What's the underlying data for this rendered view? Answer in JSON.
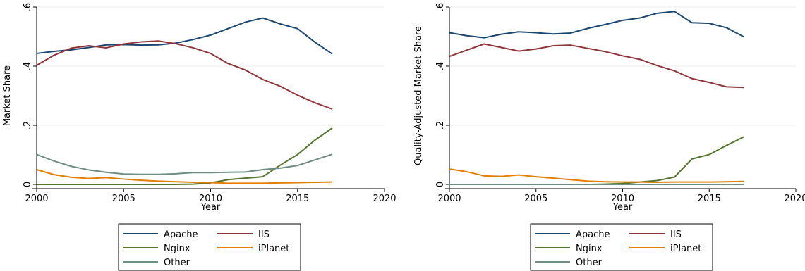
{
  "chart_data": [
    {
      "type": "line",
      "xlabel": "Year",
      "ylabel": "Market Share",
      "xlim": [
        2000,
        2020
      ],
      "ylim": [
        0,
        0.6
      ],
      "xticks": [
        2000,
        2005,
        2010,
        2015,
        2020
      ],
      "xtick_labels": [
        "2000",
        "2005",
        "2010",
        "2015",
        "2020"
      ],
      "yticks": [
        0,
        0.2,
        0.4,
        0.6
      ],
      "ytick_labels": [
        "0",
        ".2",
        ".4",
        ".6"
      ],
      "grid": true,
      "legend": "bottom",
      "x": [
        2000,
        2001,
        2002,
        2003,
        2004,
        2005,
        2006,
        2007,
        2008,
        2009,
        2010,
        2011,
        2012,
        2013,
        2014,
        2015,
        2016,
        2017
      ],
      "series": [
        {
          "name": "Apache",
          "color": "#1a476f",
          "values": [
            0.443,
            0.45,
            0.455,
            0.463,
            0.472,
            0.473,
            0.471,
            0.472,
            0.478,
            0.49,
            0.505,
            0.527,
            0.549,
            0.563,
            0.543,
            0.527,
            0.481,
            0.441
          ]
        },
        {
          "name": "IIS",
          "color": "#90353b",
          "values": [
            0.403,
            0.437,
            0.461,
            0.469,
            0.462,
            0.475,
            0.482,
            0.485,
            0.476,
            0.462,
            0.443,
            0.409,
            0.387,
            0.355,
            0.332,
            0.302,
            0.276,
            0.255
          ]
        },
        {
          "name": "Nginx",
          "color": "#55752f",
          "values": [
            0.0,
            0.0,
            0.0,
            0.0,
            0.0,
            0.0,
            0.0,
            0.0,
            0.0,
            0.001,
            0.005,
            0.016,
            0.021,
            0.026,
            0.065,
            0.101,
            0.15,
            0.191
          ]
        },
        {
          "name": "iPlanet",
          "color": "#e37e00",
          "values": [
            0.05,
            0.033,
            0.024,
            0.02,
            0.023,
            0.018,
            0.014,
            0.011,
            0.009,
            0.007,
            0.006,
            0.004,
            0.004,
            0.004,
            0.005,
            0.006,
            0.007,
            0.008
          ]
        },
        {
          "name": "Other",
          "color": "#6e8e84",
          "values": [
            0.101,
            0.079,
            0.061,
            0.049,
            0.041,
            0.035,
            0.034,
            0.034,
            0.036,
            0.04,
            0.04,
            0.041,
            0.042,
            0.05,
            0.055,
            0.064,
            0.083,
            0.102
          ]
        }
      ]
    },
    {
      "type": "line",
      "xlabel": "Year",
      "ylabel": "Quality-Adjusted Market Share",
      "xlim": [
        2000,
        2020
      ],
      "ylim": [
        0,
        0.6
      ],
      "xticks": [
        2000,
        2005,
        2010,
        2015,
        2020
      ],
      "xtick_labels": [
        "2000",
        "2005",
        "2010",
        "2015",
        "2020"
      ],
      "yticks": [
        0,
        0.2,
        0.4,
        0.6
      ],
      "ytick_labels": [
        "0",
        ".2",
        ".4",
        ".6"
      ],
      "grid": true,
      "legend": "bottom",
      "x": [
        2000,
        2001,
        2002,
        2003,
        2004,
        2005,
        2006,
        2007,
        2008,
        2009,
        2010,
        2011,
        2012,
        2013,
        2014,
        2015,
        2016,
        2017
      ],
      "series": [
        {
          "name": "Apache",
          "color": "#1a476f",
          "values": [
            0.513,
            0.503,
            0.496,
            0.508,
            0.516,
            0.513,
            0.509,
            0.512,
            0.528,
            0.541,
            0.555,
            0.563,
            0.579,
            0.585,
            0.547,
            0.545,
            0.53,
            0.499
          ]
        },
        {
          "name": "IIS",
          "color": "#90353b",
          "values": [
            0.433,
            0.454,
            0.475,
            0.463,
            0.451,
            0.458,
            0.469,
            0.471,
            0.46,
            0.449,
            0.435,
            0.423,
            0.402,
            0.384,
            0.358,
            0.345,
            0.33,
            0.328
          ]
        },
        {
          "name": "Nginx",
          "color": "#55752f",
          "values": [
            0.0,
            0.0,
            0.0,
            0.0,
            0.0,
            0.0,
            0.0,
            0.0,
            0.0,
            0.001,
            0.003,
            0.008,
            0.013,
            0.025,
            0.086,
            0.101,
            0.132,
            0.161
          ]
        },
        {
          "name": "iPlanet",
          "color": "#e37e00",
          "values": [
            0.052,
            0.043,
            0.029,
            0.027,
            0.032,
            0.026,
            0.021,
            0.016,
            0.011,
            0.009,
            0.008,
            0.008,
            0.007,
            0.008,
            0.008,
            0.008,
            0.009,
            0.01
          ]
        },
        {
          "name": "Other",
          "color": "#6e8e84",
          "values": [
            0.0,
            0.0,
            0.0,
            0.0,
            0.0,
            0.0,
            0.0,
            0.0,
            0.0,
            0.0,
            0.0,
            0.0,
            0.0,
            0.0,
            0.0,
            0.0,
            0.0,
            0.0
          ]
        }
      ]
    }
  ]
}
